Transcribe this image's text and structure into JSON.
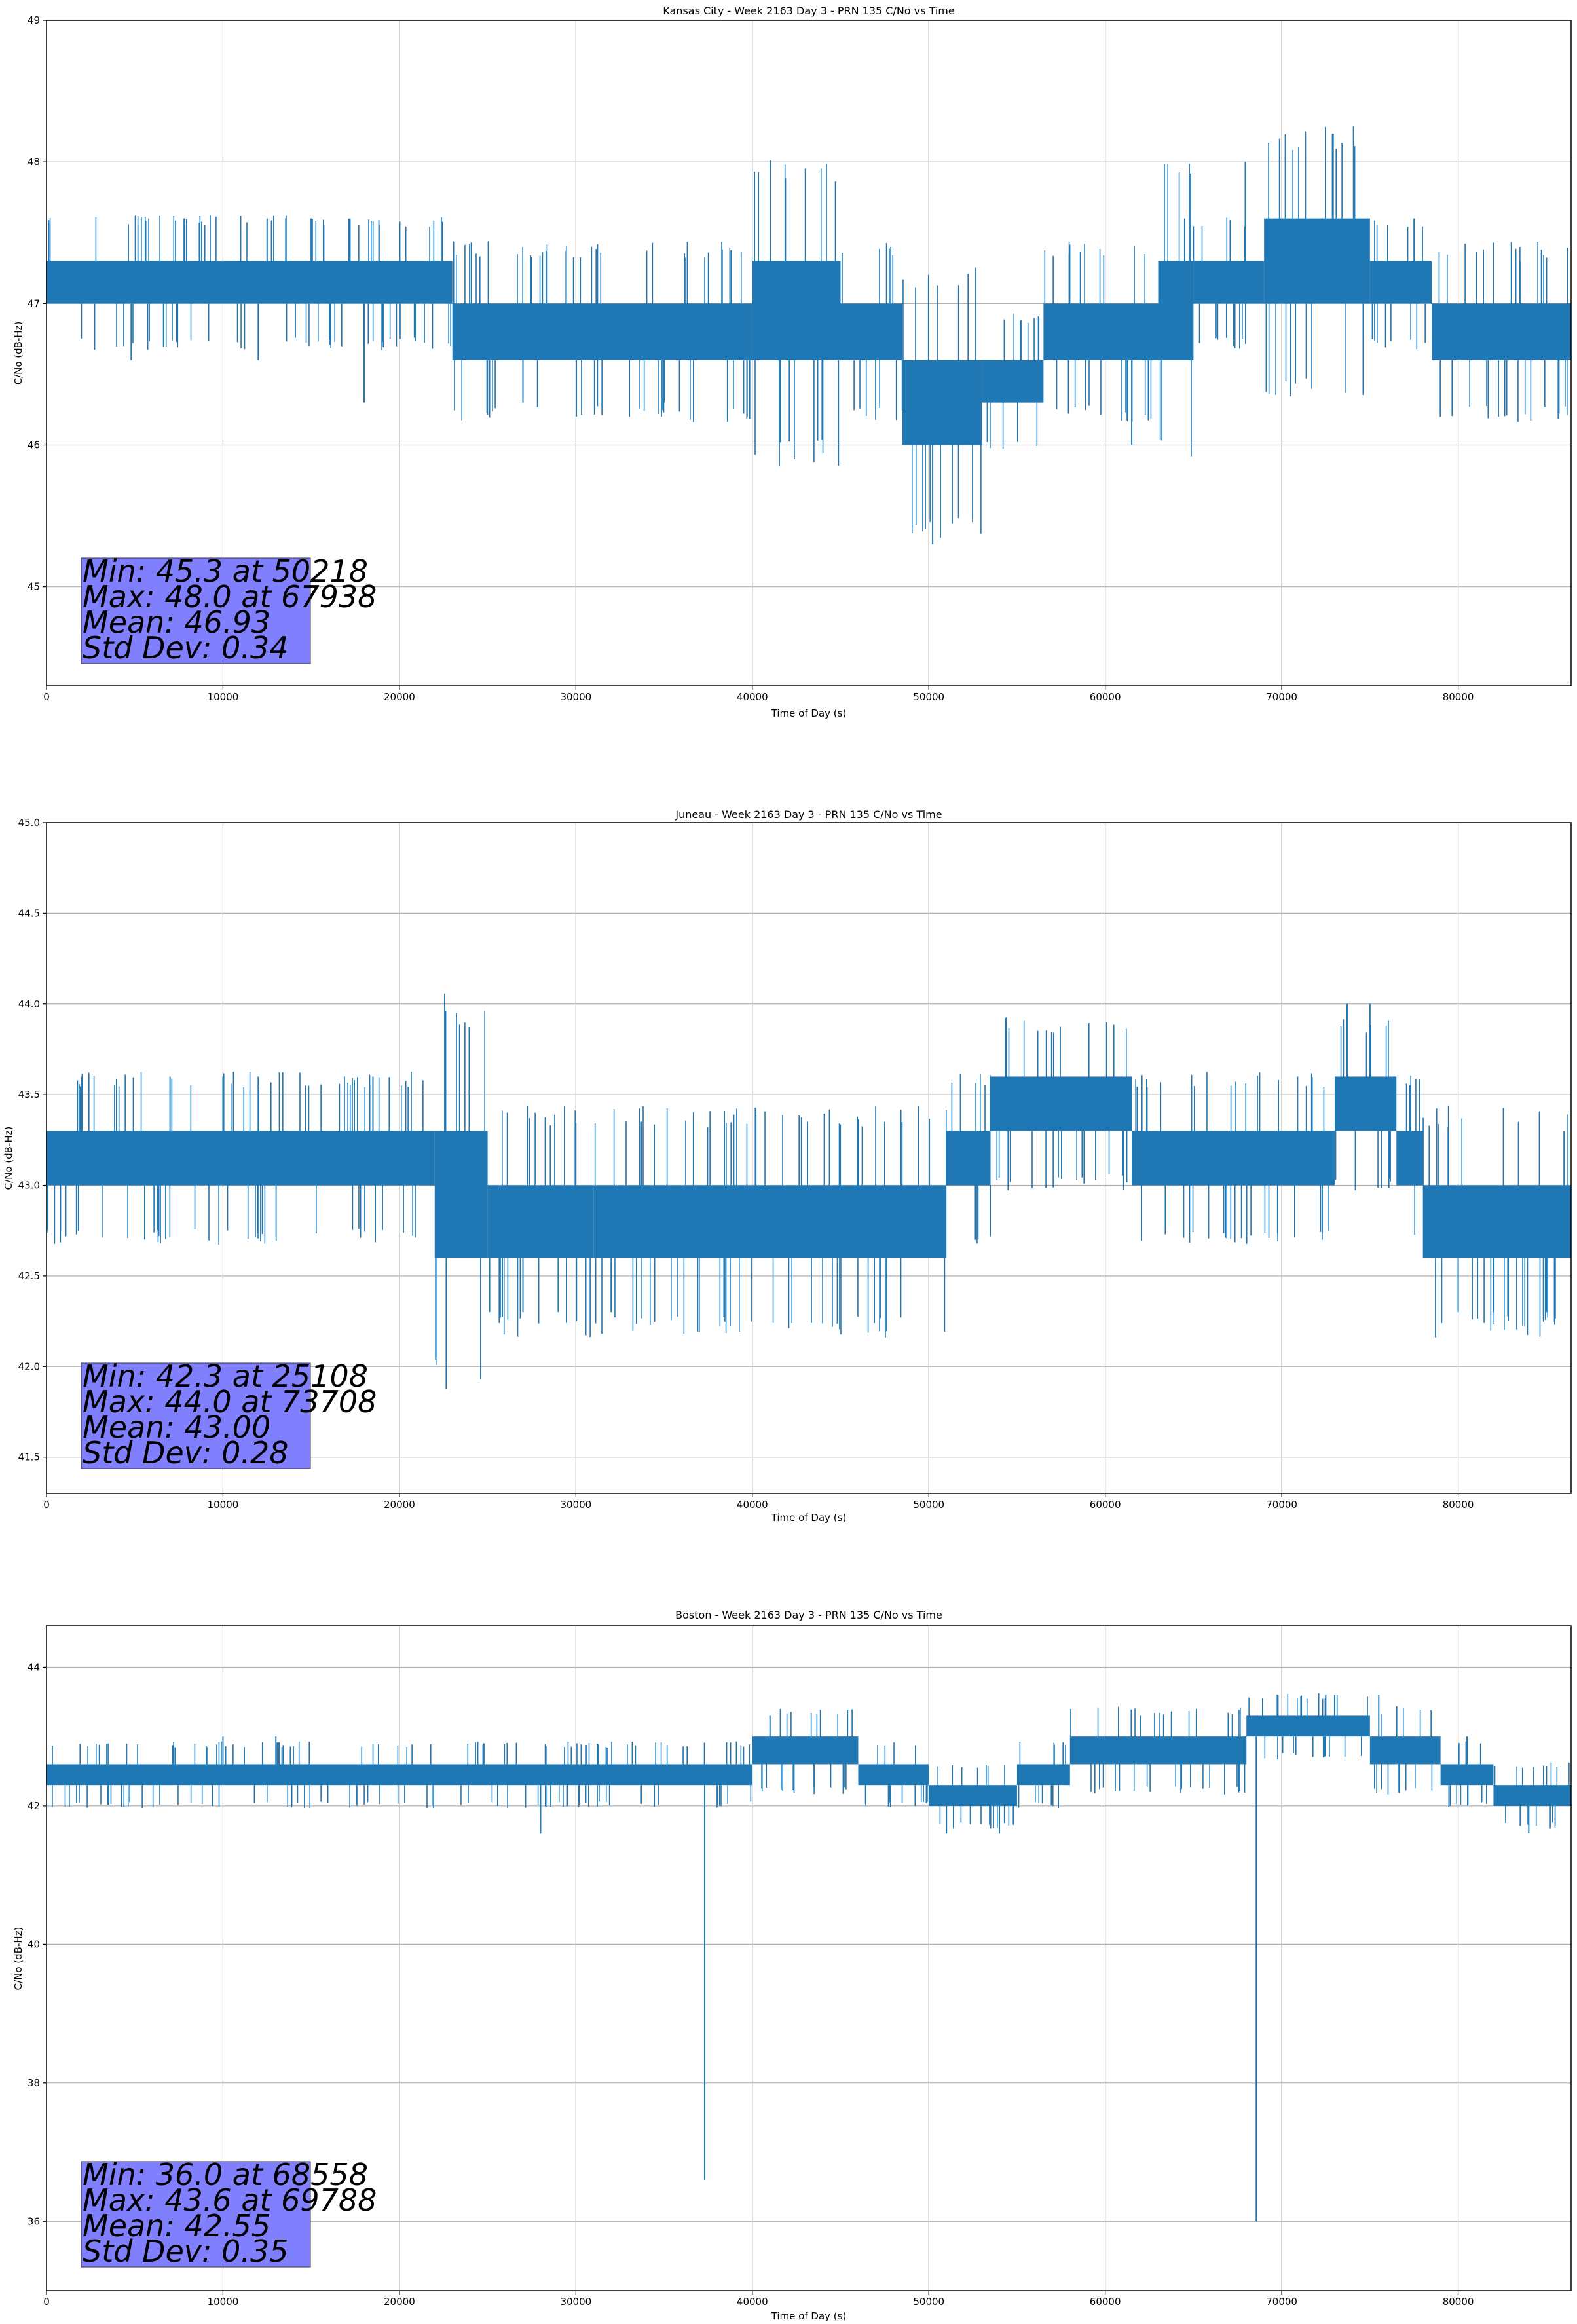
{
  "figure": {
    "background": "#ffffff",
    "line_color": "#1f77b4",
    "grid_color": "#b0b0b0",
    "stats_box_color": "#8080ff"
  },
  "chart_data": [
    {
      "type": "line",
      "title": "Kansas City - Week 2163 Day 3 - PRN 135 C/No vs Time",
      "xlabel": "Time of Day (s)",
      "ylabel": "C/No (dB-Hz)",
      "xlim": [
        0,
        86400
      ],
      "ylim": [
        44.3,
        49.0
      ],
      "xticks": [
        0,
        10000,
        20000,
        30000,
        40000,
        50000,
        60000,
        70000,
        80000
      ],
      "xtick_labels": [
        "0",
        "10000",
        "20000",
        "30000",
        "40000",
        "50000",
        "60000",
        "70000",
        "80000"
      ],
      "yticks": [
        45,
        46,
        47,
        48,
        49
      ],
      "ytick_labels": [
        "45",
        "46",
        "47",
        "48",
        "49"
      ],
      "grid": true,
      "series": [
        {
          "name": "C/No",
          "segments": [
            {
              "x0": 0,
              "x1": 23000,
              "lo": 47.0,
              "hi": 47.3
            },
            {
              "x0": 23000,
              "x1": 40000,
              "lo": 46.6,
              "hi": 47.0
            },
            {
              "x0": 40000,
              "x1": 45000,
              "lo": 46.6,
              "hi": 47.3
            },
            {
              "x0": 45000,
              "x1": 48500,
              "lo": 46.6,
              "hi": 47.0
            },
            {
              "x0": 48500,
              "x1": 53000,
              "lo": 46.0,
              "hi": 46.6
            },
            {
              "x0": 53000,
              "x1": 56500,
              "lo": 46.3,
              "hi": 46.6
            },
            {
              "x0": 56500,
              "x1": 63000,
              "lo": 46.6,
              "hi": 47.0
            },
            {
              "x0": 63000,
              "x1": 65000,
              "lo": 46.6,
              "hi": 47.3
            },
            {
              "x0": 65000,
              "x1": 69000,
              "lo": 47.0,
              "hi": 47.3
            },
            {
              "x0": 69000,
              "x1": 75000,
              "lo": 47.0,
              "hi": 47.6
            },
            {
              "x0": 75000,
              "x1": 78500,
              "lo": 47.0,
              "hi": 47.3
            },
            {
              "x0": 78500,
              "x1": 86400,
              "lo": 46.6,
              "hi": 47.0
            }
          ],
          "spikes": [
            {
              "x": 7800,
              "y": 47.6
            },
            {
              "x": 12500,
              "y": 47.6
            },
            {
              "x": 15000,
              "y": 47.6
            },
            {
              "x": 17200,
              "y": 47.6
            },
            {
              "x": 18000,
              "y": 46.3
            },
            {
              "x": 12000,
              "y": 46.6
            },
            {
              "x": 4800,
              "y": 46.6
            },
            {
              "x": 27000,
              "y": 46.3
            },
            {
              "x": 35000,
              "y": 46.3
            },
            {
              "x": 50218,
              "y": 45.3
            },
            {
              "x": 61500,
              "y": 46.0
            },
            {
              "x": 64500,
              "y": 47.6
            },
            {
              "x": 67938,
              "y": 48.0
            },
            {
              "x": 70000,
              "y": 47.6
            },
            {
              "x": 77500,
              "y": 47.6
            },
            {
              "x": 83500,
              "y": 47.3
            }
          ]
        }
      ],
      "stats": {
        "min": "Min: 45.3 at 50218",
        "max": "Max: 48.0 at 67938",
        "mean": "Mean: 46.93",
        "std": "Std Dev: 0.34"
      }
    },
    {
      "type": "line",
      "title": "Juneau - Week 2163 Day 3 - PRN 135 C/No vs Time",
      "xlabel": "Time of Day (s)",
      "ylabel": "C/No (dB-Hz)",
      "xlim": [
        0,
        86400
      ],
      "ylim": [
        41.3,
        45.0
      ],
      "xticks": [
        0,
        10000,
        20000,
        30000,
        40000,
        50000,
        60000,
        70000,
        80000
      ],
      "xtick_labels": [
        "0",
        "10000",
        "20000",
        "30000",
        "40000",
        "50000",
        "60000",
        "70000",
        "80000"
      ],
      "yticks": [
        41.5,
        42.0,
        42.5,
        43.0,
        43.5,
        44.0,
        44.5,
        45.0
      ],
      "ytick_labels": [
        "41.5",
        "42.0",
        "42.5",
        "43.0",
        "43.5",
        "44.0",
        "44.5",
        "45.0"
      ],
      "grid": true,
      "series": [
        {
          "name": "C/No",
          "segments": [
            {
              "x0": 0,
              "x1": 22000,
              "lo": 43.0,
              "hi": 43.3
            },
            {
              "x0": 22000,
              "x1": 25000,
              "lo": 42.6,
              "hi": 43.3
            },
            {
              "x0": 25000,
              "x1": 31000,
              "lo": 42.6,
              "hi": 43.0
            },
            {
              "x0": 31000,
              "x1": 51000,
              "lo": 42.6,
              "hi": 43.0
            },
            {
              "x0": 51000,
              "x1": 53500,
              "lo": 43.0,
              "hi": 43.3
            },
            {
              "x0": 53500,
              "x1": 61500,
              "lo": 43.3,
              "hi": 43.6
            },
            {
              "x0": 61500,
              "x1": 73000,
              "lo": 43.0,
              "hi": 43.3
            },
            {
              "x0": 73000,
              "x1": 76500,
              "lo": 43.3,
              "hi": 43.6
            },
            {
              "x0": 76500,
              "x1": 78000,
              "lo": 43.0,
              "hi": 43.3
            },
            {
              "x0": 78000,
              "x1": 86400,
              "lo": 42.6,
              "hi": 43.0
            }
          ],
          "spikes": [
            {
              "x": 2000,
              "y": 43.6
            },
            {
              "x": 7000,
              "y": 43.6
            },
            {
              "x": 10000,
              "y": 43.6
            },
            {
              "x": 12000,
              "y": 43.6
            },
            {
              "x": 18500,
              "y": 43.6
            },
            {
              "x": 25108,
              "y": 42.3
            },
            {
              "x": 27000,
              "y": 42.3
            },
            {
              "x": 29000,
              "y": 42.3
            },
            {
              "x": 32000,
              "y": 42.3
            },
            {
              "x": 60000,
              "y": 43.6
            },
            {
              "x": 73708,
              "y": 44.0
            },
            {
              "x": 75000,
              "y": 44.0
            },
            {
              "x": 80000,
              "y": 42.3
            },
            {
              "x": 82000,
              "y": 42.3
            },
            {
              "x": 85000,
              "y": 42.3
            },
            {
              "x": 86000,
              "y": 43.3
            }
          ]
        }
      ],
      "stats": {
        "min": "Min: 42.3 at 25108",
        "max": "Max: 44.0 at 73708",
        "mean": "Mean: 43.00",
        "std": "Std Dev: 0.28"
      }
    },
    {
      "type": "line",
      "title": "Boston - Week 2163 Day 3 - PRN 135 C/No vs Time",
      "xlabel": "Time of Day (s)",
      "ylabel": "C/No (dB-Hz)",
      "xlim": [
        0,
        86400
      ],
      "ylim": [
        35.0,
        44.6
      ],
      "xticks": [
        0,
        10000,
        20000,
        30000,
        40000,
        50000,
        60000,
        70000,
        80000
      ],
      "xtick_labels": [
        "0",
        "10000",
        "20000",
        "30000",
        "40000",
        "50000",
        "60000",
        "70000",
        "80000"
      ],
      "yticks": [
        36,
        38,
        40,
        42,
        44
      ],
      "ytick_labels": [
        "36",
        "38",
        "40",
        "42",
        "44"
      ],
      "grid": true,
      "series": [
        {
          "name": "C/No",
          "segments": [
            {
              "x0": 0,
              "x1": 40000,
              "lo": 42.3,
              "hi": 42.6
            },
            {
              "x0": 40000,
              "x1": 46000,
              "lo": 42.6,
              "hi": 43.0
            },
            {
              "x0": 46000,
              "x1": 50000,
              "lo": 42.3,
              "hi": 42.6
            },
            {
              "x0": 50000,
              "x1": 55000,
              "lo": 42.0,
              "hi": 42.3
            },
            {
              "x0": 55000,
              "x1": 58000,
              "lo": 42.3,
              "hi": 42.6
            },
            {
              "x0": 58000,
              "x1": 68000,
              "lo": 42.6,
              "hi": 43.0
            },
            {
              "x0": 68000,
              "x1": 75000,
              "lo": 43.0,
              "hi": 43.3
            },
            {
              "x0": 75000,
              "x1": 79000,
              "lo": 42.6,
              "hi": 43.0
            },
            {
              "x0": 79000,
              "x1": 82000,
              "lo": 42.3,
              "hi": 42.6
            },
            {
              "x0": 82000,
              "x1": 86400,
              "lo": 42.0,
              "hi": 42.3
            }
          ],
          "spikes": [
            {
              "x": 37300,
              "y": 36.6
            },
            {
              "x": 68558,
              "y": 36.0
            },
            {
              "x": 69788,
              "y": 43.6
            },
            {
              "x": 73000,
              "y": 43.6
            },
            {
              "x": 75500,
              "y": 43.6
            },
            {
              "x": 28000,
              "y": 41.6
            },
            {
              "x": 51000,
              "y": 41.6
            },
            {
              "x": 54000,
              "y": 41.6
            },
            {
              "x": 84000,
              "y": 41.6
            },
            {
              "x": 10000,
              "y": 43.0
            },
            {
              "x": 13000,
              "y": 43.0
            },
            {
              "x": 41000,
              "y": 43.3
            },
            {
              "x": 62000,
              "y": 43.3
            },
            {
              "x": 80500,
              "y": 43.0
            }
          ]
        }
      ],
      "stats": {
        "min": "Min: 36.0 at 68558",
        "max": "Max: 43.6 at 69788",
        "mean": "Mean: 42.55",
        "std": "Std Dev: 0.35"
      }
    }
  ]
}
